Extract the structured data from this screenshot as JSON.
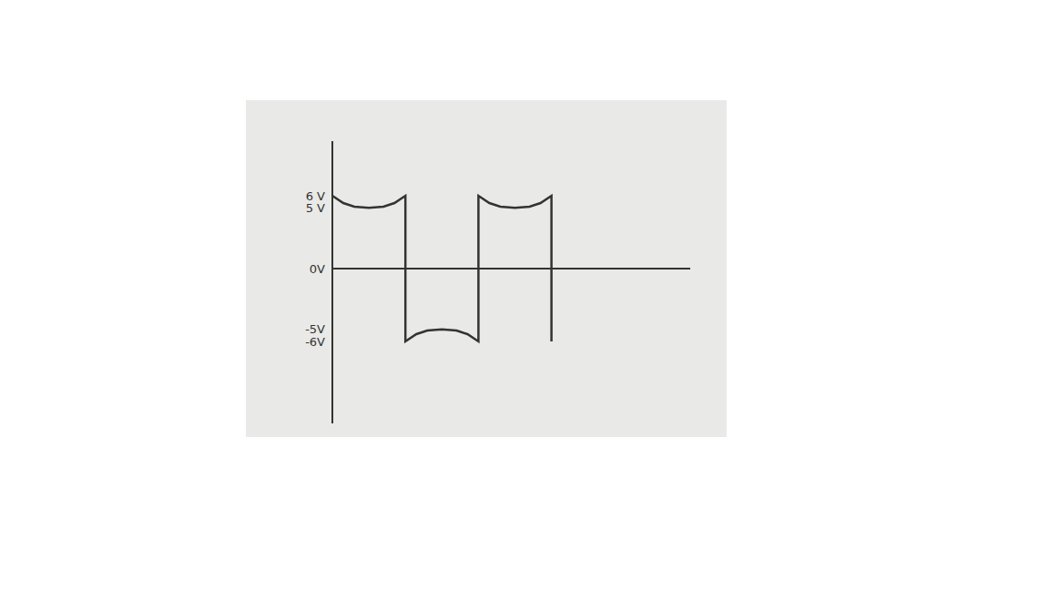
{
  "chart_data": {
    "type": "line",
    "x": [
      0,
      0.15,
      0.3,
      0.5,
      0.7,
      0.85,
      1,
      1,
      1.15,
      1.3,
      1.5,
      1.7,
      1.85,
      2,
      2,
      2.15,
      2.3,
      2.5,
      2.7,
      2.85,
      3,
      3
    ],
    "values": [
      6,
      5.4,
      5.1,
      5,
      5.1,
      5.4,
      6,
      -6,
      -5.4,
      -5.1,
      -5,
      -5.1,
      -5.4,
      -6,
      6,
      5.4,
      5.1,
      5,
      5.1,
      5.4,
      6,
      -6
    ],
    "color": "#333333",
    "line_style": "solid",
    "xlim": [
      0,
      4.9
    ],
    "ylim": [
      -12.75,
      10.5
    ],
    "yticks": [
      {
        "value": 6,
        "label": "6 V"
      },
      {
        "value": 5,
        "label": "5 V"
      },
      {
        "value": 0,
        "label": "0V"
      },
      {
        "value": -5,
        "label": "-5V"
      },
      {
        "value": -6,
        "label": "-6V"
      }
    ],
    "tick_labels": "y",
    "grid": false
  }
}
